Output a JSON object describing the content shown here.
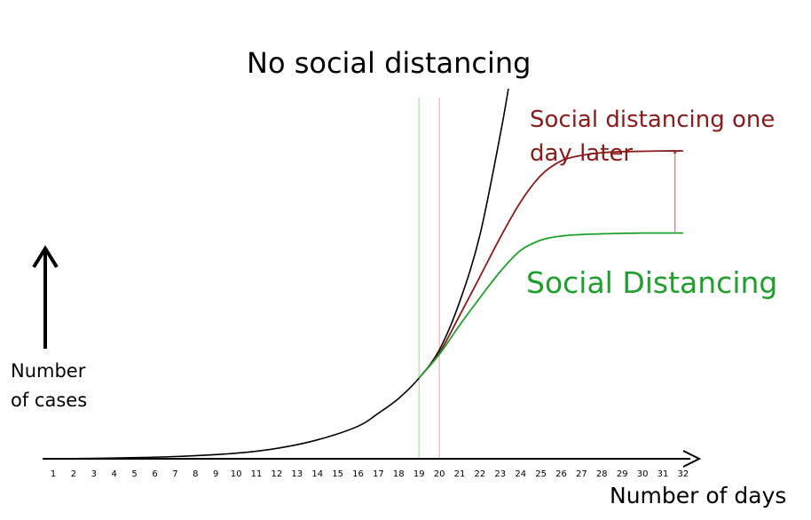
{
  "chart_data": {
    "type": "line",
    "title": "No social distancing",
    "xlabel": "Number of days",
    "ylabel_line1": "Number",
    "ylabel_line2": "of cases",
    "x_ticks": [
      1,
      2,
      3,
      4,
      5,
      6,
      7,
      8,
      9,
      10,
      11,
      12,
      13,
      14,
      15,
      16,
      17,
      18,
      19,
      20,
      21,
      22,
      23,
      24,
      25,
      26,
      27,
      28,
      29,
      30,
      31,
      32
    ],
    "xlim": [
      0.5,
      33
    ],
    "ylim": [
      0,
      100
    ],
    "grid": false,
    "y_ticks_shown": false,
    "annotations": [
      {
        "type": "vertical-line",
        "x": 19,
        "color": "#9fd49f"
      },
      {
        "type": "vertical-line",
        "x": 20,
        "color": "#e8a0a0"
      },
      {
        "type": "arrow",
        "x": 31.6,
        "from": 61,
        "to": 83,
        "color": "#c06060"
      }
    ],
    "series": [
      {
        "label_key": "title",
        "color": "#000000",
        "x": [
          1,
          4,
          7,
          10,
          12,
          14,
          16,
          17,
          18,
          19,
          20,
          21,
          22,
          23,
          23.4
        ],
        "y": [
          0,
          0.2,
          0.6,
          1.5,
          2.8,
          5.1,
          8.8,
          12.3,
          16.3,
          21.8,
          29.4,
          42.4,
          60.5,
          87.6,
          102
        ]
      },
      {
        "label": "Social distancing one day later",
        "label_line1": "Social distancing one",
        "label_line2": "day later",
        "color": "#8b1a1a",
        "x": [
          19,
          20,
          21,
          22,
          23,
          24,
          25,
          26,
          27,
          28,
          29,
          30,
          31,
          32
        ],
        "y": [
          21.8,
          28.6,
          38.7,
          49.2,
          59.8,
          69.4,
          76.6,
          80.5,
          82.0,
          82.7,
          83.0,
          83.1,
          83.2,
          83.2
        ]
      },
      {
        "label": "Social Distancing",
        "color": "#1fa02c",
        "x": [
          19,
          20,
          21,
          22,
          23,
          24,
          25,
          26,
          27,
          28,
          29,
          30,
          31,
          32
        ],
        "y": [
          21.8,
          28.2,
          36.1,
          43.5,
          50.6,
          56.3,
          59.1,
          60.2,
          60.6,
          60.8,
          60.9,
          61.0,
          61.0,
          61.0
        ]
      }
    ]
  }
}
